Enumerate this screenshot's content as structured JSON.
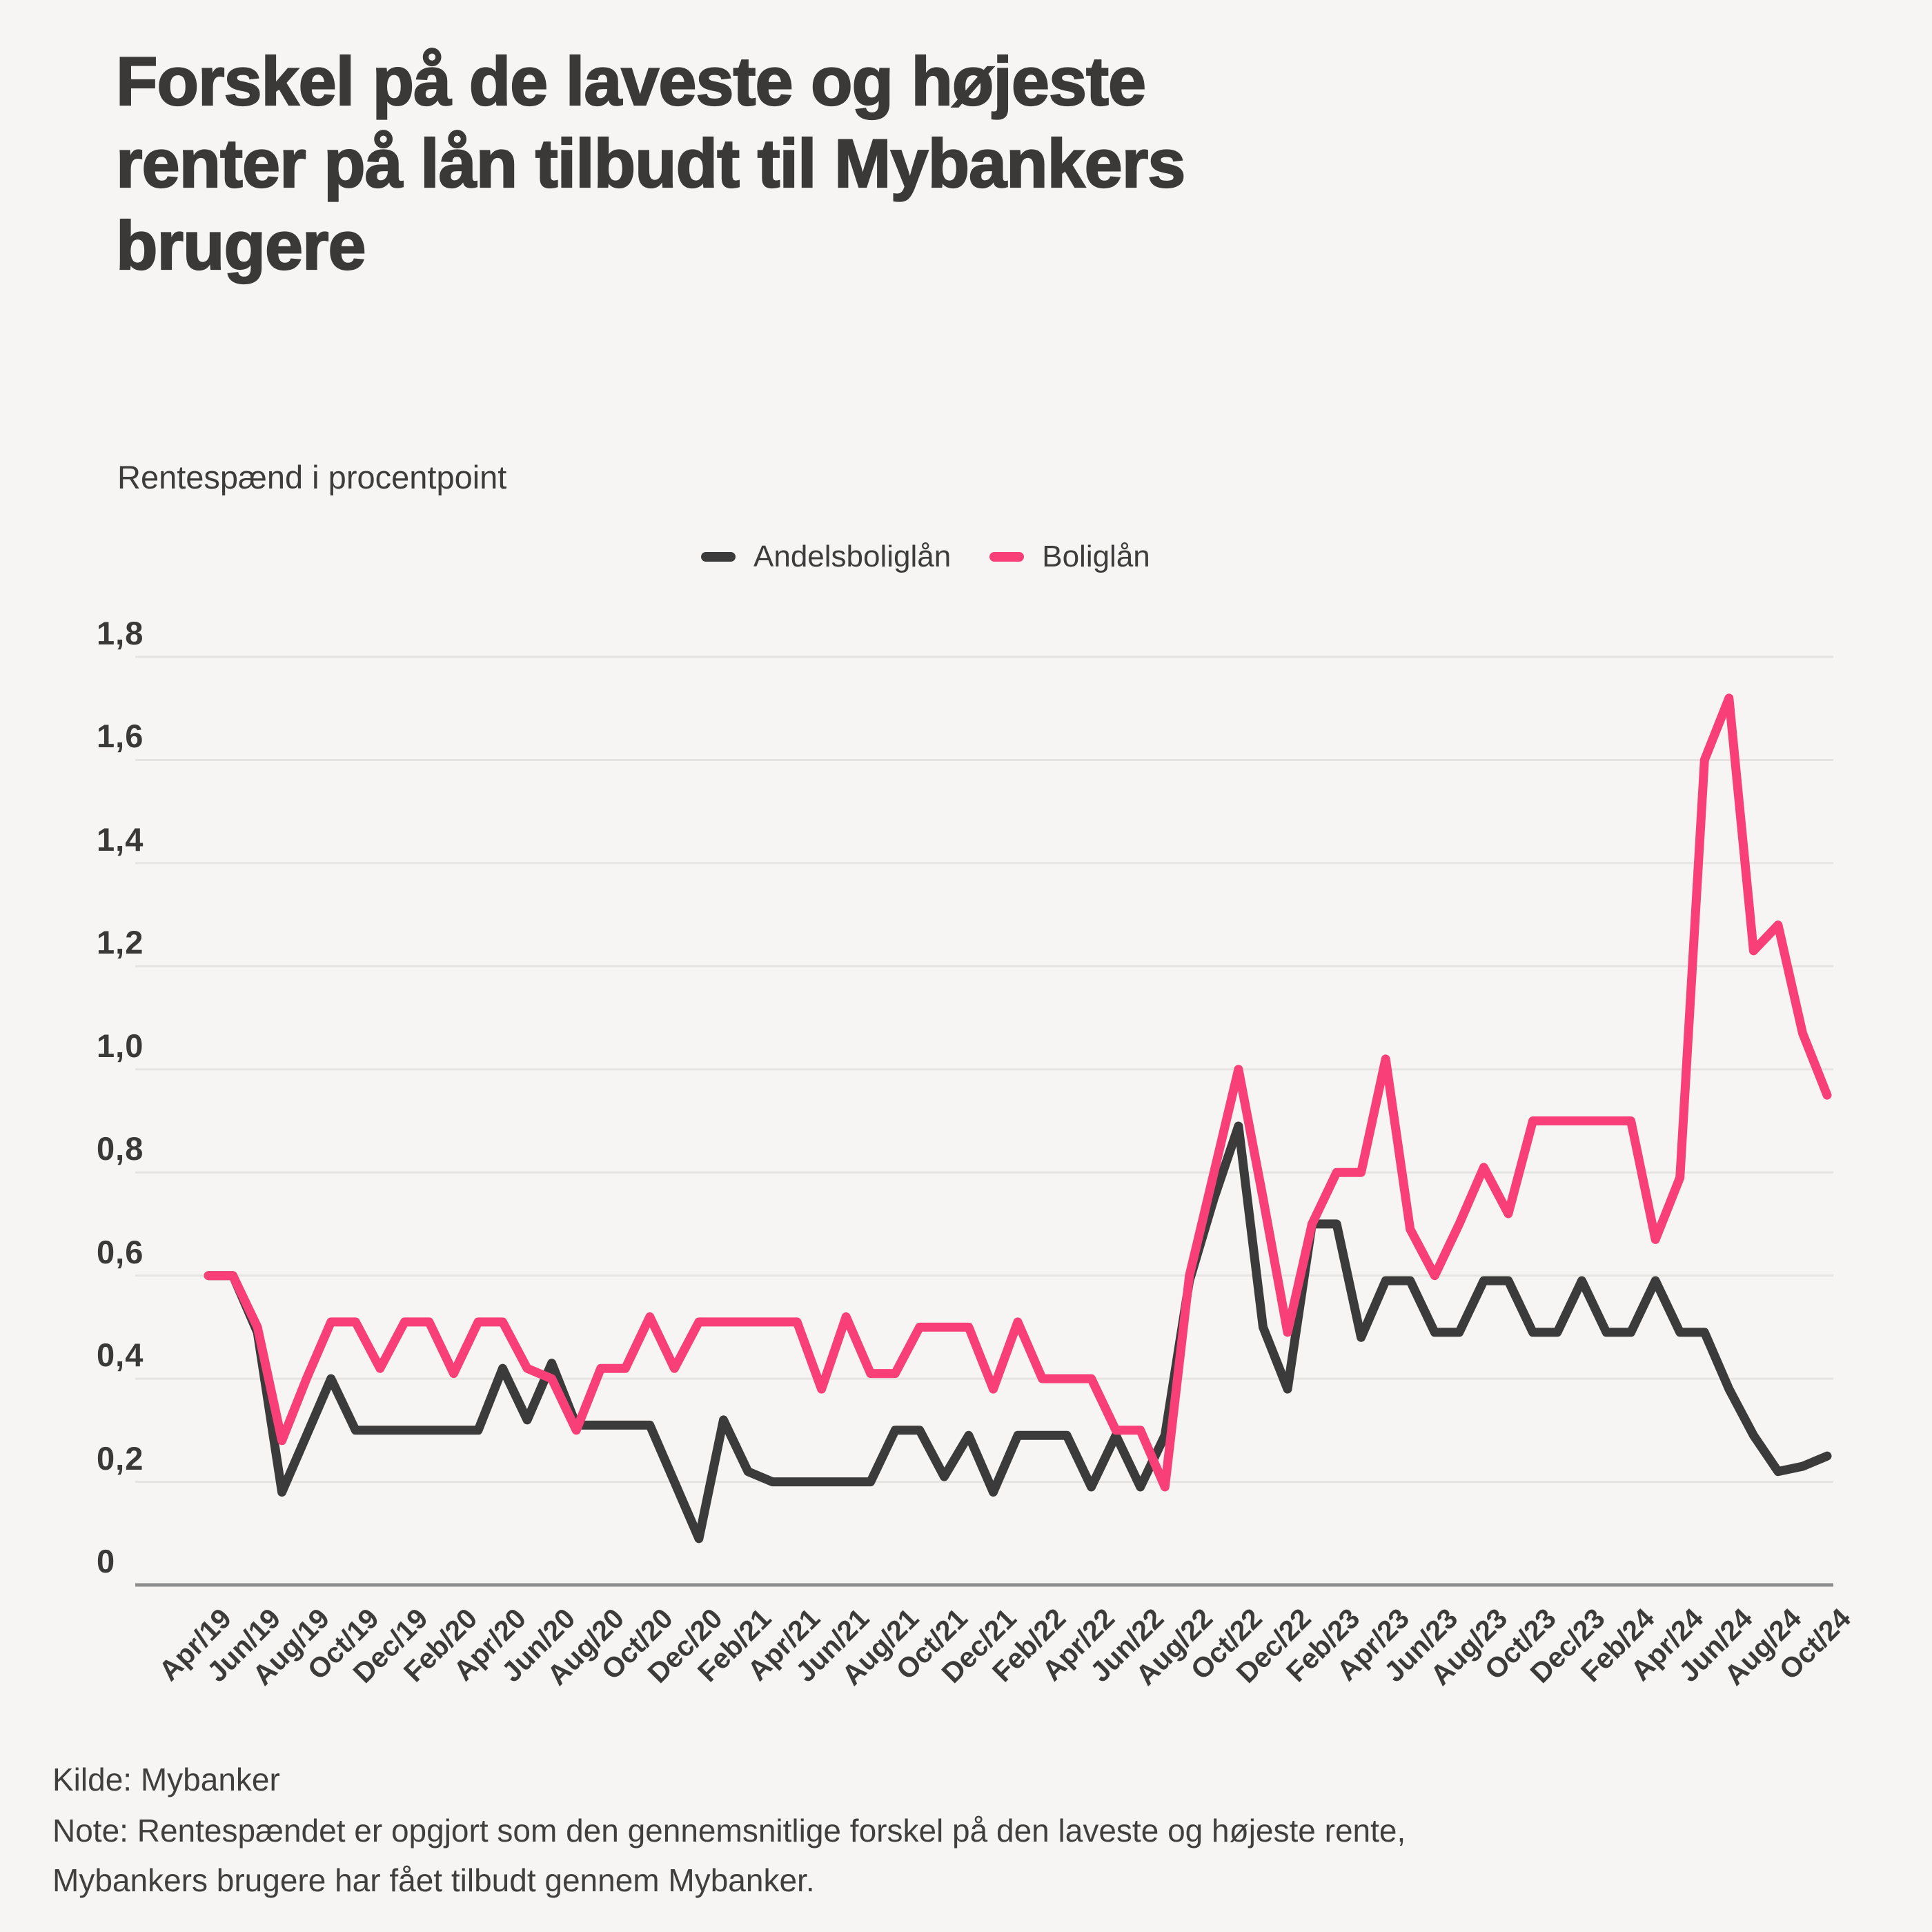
{
  "title": {
    "line1": "Forskel på de laveste og højeste",
    "line2": "renter på lån tilbudt til Mybankers",
    "line3": "brugere"
  },
  "subtitle": "Rentespænd i procentpoint",
  "legend": [
    {
      "label": "Andelsboliglån",
      "color": "#3b3b3b"
    },
    {
      "label": "Boliglån",
      "color": "#f83f78"
    }
  ],
  "footer": {
    "source": "Kilde: Mybanker",
    "note_line1": "Note: Rentespændet er opgjort som den gennemsnitlige forskel på den laveste og højeste rente,",
    "note_line2": "Mybankers brugere har fået tilbudt gennem Mybanker."
  },
  "colors": {
    "background": "#f6f5f3",
    "gridline": "#e6e4e1",
    "axis": "#8d8d8d",
    "text": "#3a3938",
    "series_andelsboliglan": "#3b3b3b",
    "series_boliglan": "#f83f78"
  },
  "chart_data": {
    "type": "line",
    "title": "Rentespænd i procentpoint",
    "xlabel": "",
    "ylabel": "",
    "ylim": [
      0,
      1.8
    ],
    "grid": "horizontal",
    "legend_position": "top-center",
    "y_tick_labels": [
      "1,8",
      "1,6",
      "1,4",
      "1,2",
      "1,0",
      "0,8",
      "0,6",
      "0,4",
      "0,2",
      "0"
    ],
    "x": [
      "Apr/19",
      "May/19",
      "Jun/19",
      "Jul/19",
      "Aug/19",
      "Sep/19",
      "Oct/19",
      "Nov/19",
      "Dec/19",
      "Jan/20",
      "Feb/20",
      "Mar/20",
      "Apr/20",
      "May/20",
      "Jun/20",
      "Jul/20",
      "Aug/20",
      "Sep/20",
      "Oct/20",
      "Nov/20",
      "Dec/20",
      "Jan/21",
      "Feb/21",
      "Mar/21",
      "Apr/21",
      "May/21",
      "Jun/21",
      "Jul/21",
      "Aug/21",
      "Sep/21",
      "Oct/21",
      "Nov/21",
      "Dec/21",
      "Jan/22",
      "Feb/22",
      "Mar/22",
      "Apr/22",
      "May/22",
      "Jun/22",
      "Jul/22",
      "Aug/22",
      "Sep/22",
      "Oct/22",
      "Nov/22",
      "Dec/22",
      "Jan/23",
      "Feb/23",
      "Mar/23",
      "Apr/23",
      "May/23",
      "Jun/23",
      "Jul/23",
      "Aug/23",
      "Sep/23",
      "Oct/23",
      "Nov/23",
      "Dec/23",
      "Jan/24",
      "Feb/24",
      "Mar/24",
      "Apr/24",
      "May/24",
      "Jun/24",
      "Jul/24",
      "Aug/24",
      "Sep/24",
      "Oct/24"
    ],
    "x_tick_labels": [
      "Apr/19",
      "Jun/19",
      "Aug/19",
      "Oct/19",
      "Dec/19",
      "Feb/20",
      "Apr/20",
      "Jun/20",
      "Aug/20",
      "Oct/20",
      "Dec/20",
      "Feb/21",
      "Apr/21",
      "Jun/21",
      "Aug/21",
      "Oct/21",
      "Dec/21",
      "Feb/22",
      "Apr/22",
      "Jun/22",
      "Aug/22",
      "Oct/22",
      "Dec/22",
      "Feb/23",
      "Apr/23",
      "Jun/23",
      "Aug/23",
      "Oct/23",
      "Dec/23",
      "Feb/24",
      "Apr/24",
      "Jun/24",
      "Aug/24",
      "Oct/24"
    ],
    "series": [
      {
        "name": "Andelsboliglån",
        "color": "#3b3b3b",
        "values": [
          0.6,
          0.6,
          0.49,
          0.18,
          0.29,
          0.4,
          0.3,
          0.3,
          0.3,
          0.3,
          0.3,
          0.3,
          0.42,
          0.32,
          0.43,
          0.31,
          0.31,
          0.31,
          0.31,
          0.2,
          0.09,
          0.32,
          0.22,
          0.2,
          0.2,
          0.2,
          0.2,
          0.2,
          0.3,
          0.3,
          0.21,
          0.29,
          0.18,
          0.29,
          0.29,
          0.29,
          0.19,
          0.29,
          0.19,
          0.29,
          0.59,
          0.75,
          0.89,
          0.5,
          0.38,
          0.7,
          0.7,
          0.48,
          0.59,
          0.59,
          0.49,
          0.49,
          0.59,
          0.59,
          0.49,
          0.49,
          0.59,
          0.49,
          0.49,
          0.59,
          0.49,
          0.49,
          0.38,
          0.29,
          0.22,
          0.23,
          0.25
        ]
      },
      {
        "name": "Boliglån",
        "color": "#f83f78",
        "values": [
          0.6,
          0.6,
          0.5,
          0.28,
          0.4,
          0.51,
          0.51,
          0.42,
          0.51,
          0.51,
          0.41,
          0.51,
          0.51,
          0.42,
          0.4,
          0.3,
          0.42,
          0.42,
          0.52,
          0.42,
          0.51,
          0.51,
          0.51,
          0.51,
          0.51,
          0.38,
          0.52,
          0.41,
          0.41,
          0.5,
          0.5,
          0.5,
          0.38,
          0.51,
          0.4,
          0.4,
          0.4,
          0.3,
          0.3,
          0.19,
          0.6,
          0.8,
          1.0,
          0.75,
          0.49,
          0.7,
          0.8,
          0.8,
          1.02,
          0.69,
          0.6,
          0.7,
          0.81,
          0.72,
          0.9,
          0.9,
          0.9,
          0.9,
          0.9,
          0.67,
          0.79,
          1.6,
          1.72,
          1.23,
          1.28,
          1.07,
          0.95
        ]
      }
    ]
  }
}
